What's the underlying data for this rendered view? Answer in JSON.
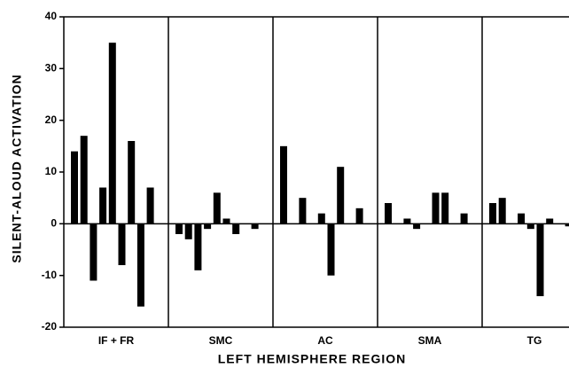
{
  "chart_data": {
    "type": "bar",
    "ylabel": "SILENT-ALOUD ACTIVATION",
    "xlabel": "LEFT HEMISPHERE REGION",
    "categories": [
      "IF + FR",
      "SMC",
      "AC",
      "SMA",
      "TG"
    ],
    "groups": [
      [
        14,
        17,
        -11,
        7,
        35,
        -8,
        16,
        -16,
        7
      ],
      [
        -2,
        -3,
        -9,
        -1,
        6,
        1,
        -2,
        0,
        -1
      ],
      [
        15,
        0,
        5,
        0,
        2,
        -10,
        11,
        0,
        3
      ],
      [
        4,
        0,
        1,
        -1,
        0,
        6,
        6,
        0,
        2
      ],
      [
        4,
        5,
        0,
        2,
        -1,
        -14,
        1,
        0,
        -0.5
      ]
    ],
    "color": "#000000",
    "ylim": [
      -20,
      40
    ],
    "yticks": [
      -20,
      -10,
      0,
      10,
      20,
      30,
      40
    ]
  }
}
